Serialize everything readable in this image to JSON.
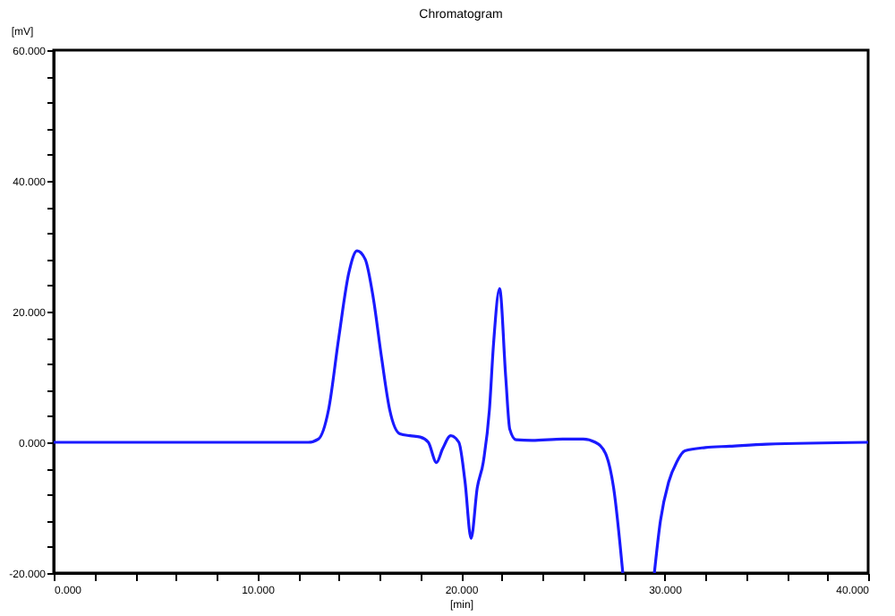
{
  "chart_data": {
    "type": "line",
    "title": "Chromatogram",
    "xlabel": "[min]",
    "ylabel": "[mV]",
    "x": [
      0,
      5,
      10,
      12.5,
      13,
      13.5,
      14,
      14.5,
      14.9,
      15.3,
      15.7,
      16.1,
      16.5,
      17,
      17.5,
      18,
      18.4,
      18.8,
      19.1,
      19.5,
      19.9,
      20.2,
      20.5,
      20.8,
      21.1,
      21.4,
      21.6,
      21.9,
      22.2,
      22.4,
      22.7,
      23.5,
      25,
      26,
      26.6,
      27.1,
      27.5,
      27.95,
      28.7,
      29.5,
      29.8,
      30.2,
      30.6,
      31,
      32,
      33.2,
      35,
      40
    ],
    "series": [
      {
        "color": "#1a1aff",
        "values": [
          0,
          0,
          0,
          0,
          0.5,
          5,
          16,
          26,
          29.3,
          28,
          22,
          13,
          5,
          1.3,
          1.0,
          0.8,
          0,
          -3.1,
          -1,
          1.0,
          0,
          -6,
          -14.7,
          -7,
          -3,
          5,
          15,
          23.5,
          10,
          2,
          0.4,
          0.3,
          0.5,
          0.5,
          0,
          -1.7,
          -7,
          -20,
          null,
          -20,
          -12,
          -6.1,
          -3,
          -1.3,
          -0.8,
          -0.6,
          -0.3,
          0
        ]
      }
    ],
    "xlim": [
      0,
      40
    ],
    "ylim": [
      -20,
      60
    ],
    "xticks": [
      {
        "value": 0,
        "label": "0.000"
      },
      {
        "value": 2,
        "label": null
      },
      {
        "value": 4,
        "label": null
      },
      {
        "value": 6,
        "label": null
      },
      {
        "value": 8,
        "label": null
      },
      {
        "value": 10,
        "label": "10.000"
      },
      {
        "value": 12,
        "label": null
      },
      {
        "value": 14,
        "label": null
      },
      {
        "value": 16,
        "label": null
      },
      {
        "value": 18,
        "label": null
      },
      {
        "value": 20,
        "label": "20.000"
      },
      {
        "value": 22,
        "label": null
      },
      {
        "value": 24,
        "label": null
      },
      {
        "value": 26,
        "label": null
      },
      {
        "value": 28,
        "label": null
      },
      {
        "value": 30,
        "label": "30.000"
      },
      {
        "value": 32,
        "label": null
      },
      {
        "value": 34,
        "label": null
      },
      {
        "value": 36,
        "label": null
      },
      {
        "value": 38,
        "label": null
      },
      {
        "value": 40,
        "label": "40.000"
      }
    ],
    "yticks": [
      {
        "value": -20,
        "label": "-20.000"
      },
      {
        "value": -16,
        "label": null
      },
      {
        "value": -12,
        "label": null
      },
      {
        "value": -8,
        "label": null
      },
      {
        "value": -4,
        "label": null
      },
      {
        "value": 0,
        "label": "0.000"
      },
      {
        "value": 4,
        "label": null
      },
      {
        "value": 8,
        "label": null
      },
      {
        "value": 12,
        "label": null
      },
      {
        "value": 16,
        "label": null
      },
      {
        "value": 20,
        "label": "20.000"
      },
      {
        "value": 24,
        "label": null
      },
      {
        "value": 28,
        "label": null
      },
      {
        "value": 32,
        "label": null
      },
      {
        "value": 36,
        "label": null
      },
      {
        "value": 40,
        "label": "40.000"
      },
      {
        "value": 44,
        "label": null
      },
      {
        "value": 48,
        "label": null
      },
      {
        "value": 52,
        "label": null
      },
      {
        "value": 56,
        "label": null
      },
      {
        "value": 60,
        "label": "60.000"
      }
    ],
    "grid": false,
    "marker": "none",
    "line_style": "solid"
  }
}
